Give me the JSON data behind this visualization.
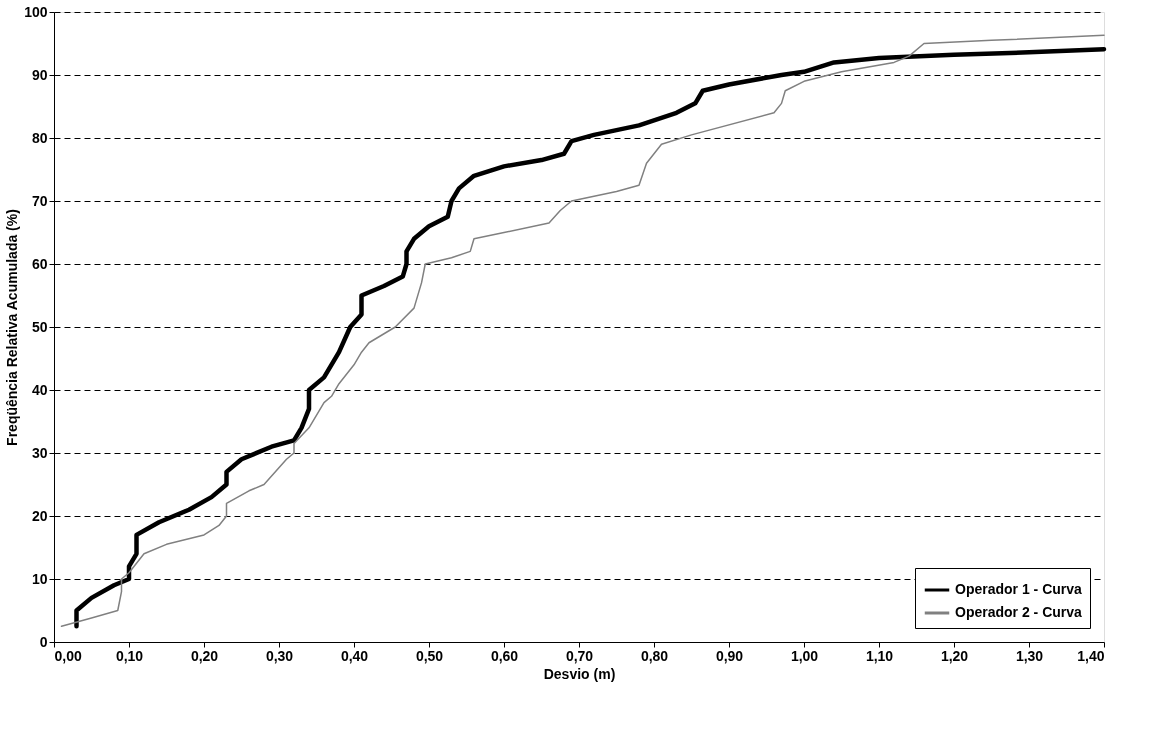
{
  "chart_data": {
    "type": "line",
    "xlabel": "Desvio (m)",
    "ylabel": "Freqüência Relativa Acumulada (%)",
    "xlim": [
      0,
      1.4
    ],
    "xticks": [
      {
        "value": 0,
        "label": "0,00"
      },
      {
        "value": 0.1,
        "label": "0,10"
      },
      {
        "value": 0.2,
        "label": "0,20"
      },
      {
        "value": 0.3,
        "label": "0,30"
      },
      {
        "value": 0.4,
        "label": "0,40"
      },
      {
        "value": 0.5,
        "label": "0,50"
      },
      {
        "value": 0.6,
        "label": "0,60"
      },
      {
        "value": 0.7,
        "label": "0,70"
      },
      {
        "value": 0.8,
        "label": "0,80"
      },
      {
        "value": 0.9,
        "label": "0,90"
      },
      {
        "value": 1.0,
        "label": "1,00"
      },
      {
        "value": 1.1,
        "label": "1,10"
      },
      {
        "value": 1.2,
        "label": "1,20"
      },
      {
        "value": 1.3,
        "label": "1,30"
      },
      {
        "value": 1.4,
        "label": "1,40"
      }
    ],
    "ylim": [
      0,
      100
    ],
    "yticks": [
      0,
      10,
      20,
      30,
      40,
      50,
      60,
      70,
      80,
      90,
      100
    ],
    "grid": "y",
    "legend": "bottom right",
    "marker": "none",
    "series": [
      {
        "name": "Operador 1 - Curva",
        "color": "#000000",
        "x": [
          0.03,
          0.03,
          0.05,
          0.08,
          0.1,
          0.1,
          0.11,
          0.11,
          0.14,
          0.18,
          0.21,
          0.23,
          0.23,
          0.25,
          0.29,
          0.32,
          0.33,
          0.34,
          0.34,
          0.36,
          0.38,
          0.395,
          0.41,
          0.41,
          0.44,
          0.465,
          0.47,
          0.47,
          0.48,
          0.5,
          0.525,
          0.53,
          0.54,
          0.56,
          0.6,
          0.65,
          0.68,
          0.69,
          0.72,
          0.78,
          0.83,
          0.855,
          0.865,
          0.9,
          0.97,
          1.0,
          1.04,
          1.1,
          1.2,
          1.3,
          1.4
        ],
        "values": [
          2.5,
          5,
          7,
          9,
          10,
          12,
          14,
          17,
          19,
          21,
          23,
          25,
          27,
          29,
          31,
          32,
          34,
          37,
          40,
          42,
          46,
          50,
          52,
          55,
          56.5,
          58,
          60,
          62,
          64,
          66,
          67.5,
          70,
          72,
          74,
          75.5,
          76.5,
          77.5,
          79.5,
          80.5,
          82,
          84,
          85.5,
          87.5,
          88.5,
          90,
          90.5,
          92,
          92.7,
          93.2,
          93.6,
          94.1
        ]
      },
      {
        "name": "Operador 2 - Curva",
        "color": "#808080",
        "x": [
          0.01,
          0.05,
          0.085,
          0.09,
          0.09,
          0.1,
          0.12,
          0.15,
          0.2,
          0.22,
          0.23,
          0.23,
          0.26,
          0.28,
          0.31,
          0.32,
          0.32,
          0.34,
          0.36,
          0.37,
          0.38,
          0.4,
          0.41,
          0.42,
          0.455,
          0.48,
          0.49,
          0.495,
          0.53,
          0.555,
          0.56,
          0.6,
          0.66,
          0.675,
          0.69,
          0.75,
          0.78,
          0.79,
          0.81,
          0.85,
          0.96,
          0.97,
          0.975,
          1.0,
          1.05,
          1.12,
          1.14,
          1.16,
          1.25,
          1.4
        ],
        "values": [
          2.5,
          3.8,
          5,
          8,
          10,
          11,
          14,
          15.5,
          17,
          18.5,
          20,
          22,
          24,
          25,
          29,
          30,
          31.5,
          34,
          38,
          39,
          41,
          44,
          46,
          47.5,
          50,
          53,
          57,
          60,
          61,
          62,
          64,
          65,
          66.5,
          68.5,
          70,
          71.5,
          72.5,
          76,
          79,
          80.5,
          84,
          85.5,
          87.5,
          89,
          90.5,
          92,
          93,
          95,
          95.5,
          96.3
        ]
      }
    ]
  }
}
